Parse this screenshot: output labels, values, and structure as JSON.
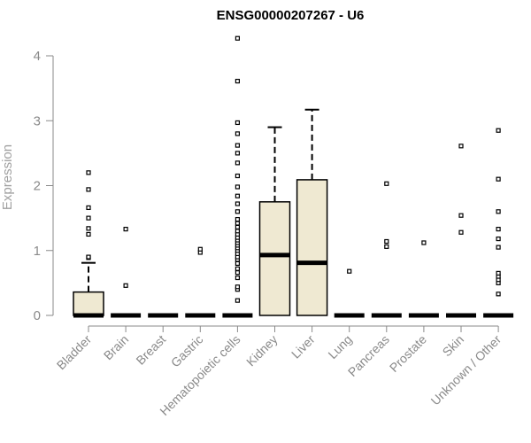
{
  "chart_data": {
    "type": "box",
    "title": "ENSG00000207267 - U6",
    "ylabel": "Expression",
    "xlabel": "",
    "ylim": [
      0,
      4.4
    ],
    "yticks": [
      "0",
      "1",
      "2",
      "3",
      "4"
    ],
    "categories": [
      "Bladder",
      "Brain",
      "Breast",
      "Gastric",
      "Hematopoietic cells",
      "Kidney",
      "Liver",
      "Lung",
      "Pancreas",
      "Prostate",
      "Skin",
      "Unknown / Other"
    ],
    "box_fill": "#efe9d2",
    "series": [
      {
        "category": "Bladder",
        "q1": 0,
        "median": 0,
        "q3": 0.36,
        "whisker_low": 0,
        "whisker_high": 0.81,
        "outliers": [
          0.89,
          0.9,
          1.25,
          1.34,
          1.5,
          1.66,
          1.94,
          2.2
        ]
      },
      {
        "category": "Brain",
        "q1": 0,
        "median": 0,
        "q3": 0,
        "whisker_low": 0,
        "whisker_high": 0,
        "outliers": [
          0.46,
          1.33
        ]
      },
      {
        "category": "Breast",
        "q1": 0,
        "median": 0,
        "q3": 0,
        "whisker_low": 0,
        "whisker_high": 0,
        "outliers": []
      },
      {
        "category": "Gastric",
        "q1": 0,
        "median": 0,
        "q3": 0,
        "whisker_low": 0,
        "whisker_high": 0,
        "outliers": [
          0.97,
          1.02
        ]
      },
      {
        "category": "Hematopoietic cells",
        "q1": 0,
        "median": 0,
        "q3": 0,
        "whisker_low": 0,
        "whisker_high": 0,
        "outliers": [
          0.23,
          0.4,
          0.44,
          0.58,
          0.66,
          0.72,
          0.8,
          0.86,
          0.9,
          0.95,
          1.0,
          1.04,
          1.08,
          1.12,
          1.16,
          1.2,
          1.25,
          1.3,
          1.36,
          1.42,
          1.48,
          1.6,
          1.72,
          1.84,
          1.98,
          2.15,
          2.35,
          2.5,
          2.62,
          2.8,
          2.97,
          3.61,
          4.27
        ]
      },
      {
        "category": "Kidney",
        "q1": 0,
        "median": 0.93,
        "q3": 1.75,
        "whisker_low": 0,
        "whisker_high": 2.9,
        "outliers": []
      },
      {
        "category": "Liver",
        "q1": 0,
        "median": 0.81,
        "q3": 2.09,
        "whisker_low": 0,
        "whisker_high": 3.17,
        "outliers": []
      },
      {
        "category": "Lung",
        "q1": 0,
        "median": 0,
        "q3": 0,
        "whisker_low": 0,
        "whisker_high": 0,
        "outliers": [
          0.68
        ]
      },
      {
        "category": "Pancreas",
        "q1": 0,
        "median": 0,
        "q3": 0,
        "whisker_low": 0,
        "whisker_high": 0,
        "outliers": [
          1.06,
          1.14,
          2.03
        ]
      },
      {
        "category": "Prostate",
        "q1": 0,
        "median": 0,
        "q3": 0,
        "whisker_low": 0,
        "whisker_high": 0,
        "outliers": [
          1.12
        ]
      },
      {
        "category": "Skin",
        "q1": 0,
        "median": 0,
        "q3": 0,
        "whisker_low": 0,
        "whisker_high": 0,
        "outliers": [
          1.28,
          1.54,
          2.61
        ]
      },
      {
        "category": "Unknown / Other",
        "q1": 0,
        "median": 0,
        "q3": 0,
        "whisker_low": 0,
        "whisker_high": 0,
        "outliers": [
          0.33,
          0.5,
          0.55,
          0.6,
          0.65,
          1.05,
          1.18,
          1.33,
          1.6,
          2.1,
          2.85
        ]
      }
    ]
  }
}
